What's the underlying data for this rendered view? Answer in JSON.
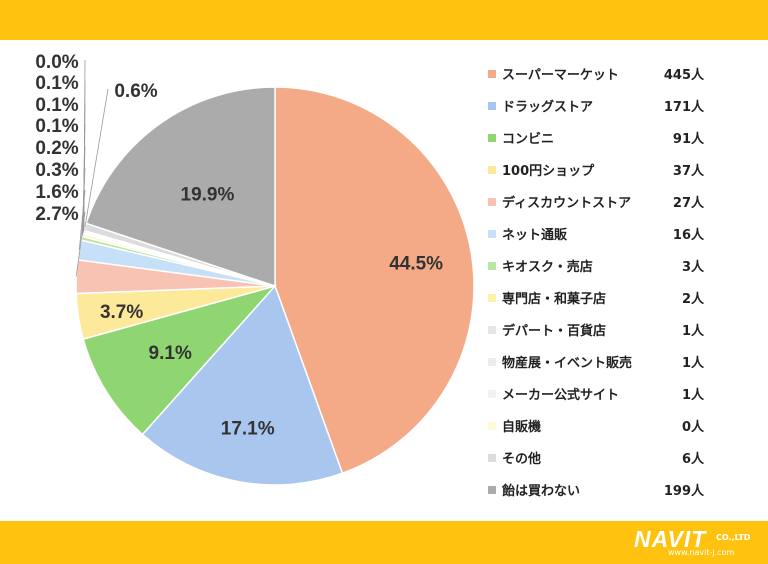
{
  "colors": {
    "band": "#ffc20e",
    "slices": [
      "#f4aa86",
      "#a8c6ee",
      "#8fd673",
      "#fde99a",
      "#f9c3b4",
      "#c5e0f7",
      "#b8e6a3",
      "#fff2a8",
      "#e6e6e6",
      "#ececec",
      "#f2f2f2",
      "#fffbd6",
      "#dcdcdc",
      "#ababab"
    ]
  },
  "chart_data": {
    "type": "pie",
    "title": "",
    "categories": [
      "スーパーマーケット",
      "ドラッグストア",
      "コンビニ",
      "100円ショップ",
      "ディスカウントストア",
      "ネット通販",
      "キオスク・売店",
      "専門店・和菓子店",
      "デパート・百貨店",
      "物産展・イベント販売",
      "メーカー公式サイト",
      "自販機",
      "その他",
      "飴は買わない"
    ],
    "counts": [
      "445人",
      "171人",
      "91人",
      "37人",
      "27人",
      "16人",
      "3人",
      "2人",
      "1人",
      "1人",
      "1人",
      "0人",
      "6人",
      "199人"
    ],
    "values": [
      445,
      171,
      91,
      37,
      27,
      16,
      3,
      2,
      1,
      1,
      1,
      0,
      6,
      199
    ],
    "percent_labels": [
      "44.5%",
      "17.1%",
      "9.1%",
      "3.7%",
      "2.7%",
      "1.6%",
      "0.3%",
      "0.2%",
      "0.1%",
      "0.1%",
      "0.1%",
      "0.0%",
      "0.6%",
      "19.9%"
    ],
    "legend_position": "right"
  },
  "logo": {
    "name": "NAVIT",
    "suffix": "CO.,LTD",
    "url": "www.navit-j.com"
  }
}
